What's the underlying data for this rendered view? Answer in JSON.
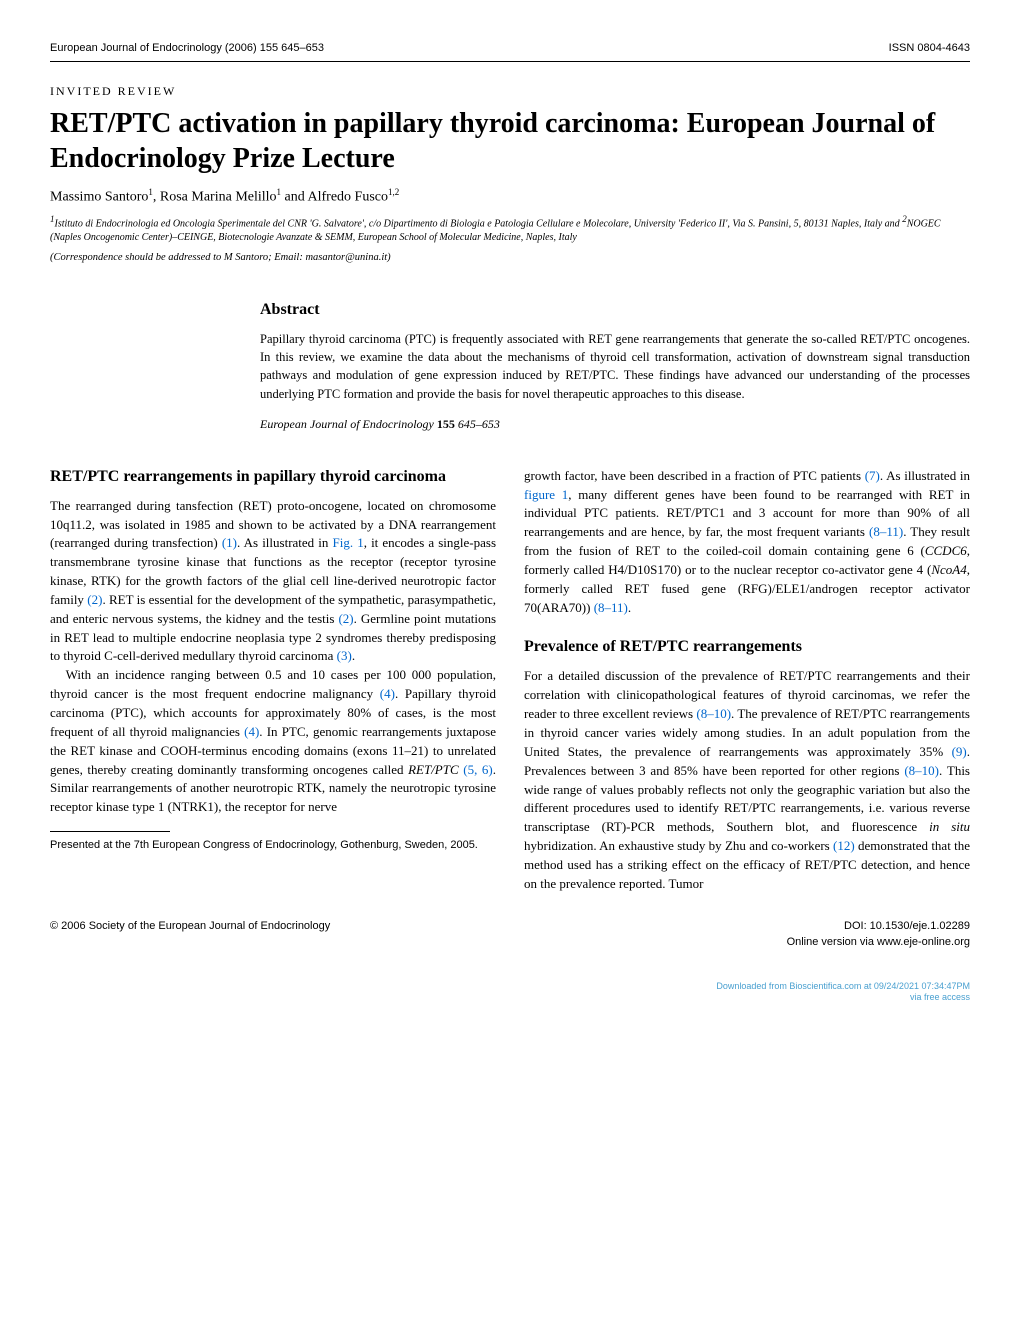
{
  "header": {
    "journal_line": "European Journal of Endocrinology (2006) 155 645–653",
    "issn": "ISSN 0804-4643"
  },
  "article": {
    "review_label": "INVITED REVIEW",
    "title": "RET/PTC activation in papillary thyroid carcinoma: European Journal of Endocrinology Prize Lecture",
    "authors_html": "Massimo Santoro<sup>1</sup>, Rosa Marina Melillo<sup>1</sup> and Alfredo Fusco<sup>1,2</sup>",
    "affiliations_html": "<sup>1</sup>Istituto di Endocrinologia ed Oncologia Sperimentale del CNR 'G. Salvatore', c/o Dipartimento di Biologia e Patologia Cellulare e Molecolare, University 'Federico II', Via S. Pansini, 5, 80131 Naples, Italy and <sup>2</sup>NOGEC (Naples Oncogenomic Center)–CEINGE, Biotecnologie Avanzate & SEMM, European School of Molecular Medicine, Naples, Italy",
    "correspondence": "(Correspondence should be addressed to M Santoro; Email: masantor@unina.it)"
  },
  "abstract": {
    "heading": "Abstract",
    "text": "Papillary thyroid carcinoma (PTC) is frequently associated with RET gene rearrangements that generate the so-called RET/PTC oncogenes. In this review, we examine the data about the mechanisms of thyroid cell transformation, activation of downstream signal transduction pathways and modulation of gene expression induced by RET/PTC. These findings have advanced our understanding of the processes underlying PTC formation and provide the basis for novel therapeutic approaches to this disease.",
    "citation_journal": "European Journal of Endocrinology",
    "citation_vol": "155",
    "citation_pages": "645–653"
  },
  "body": {
    "left": {
      "heading1": "RET/PTC rearrangements in papillary thyroid carcinoma",
      "p1_html": "The rearranged during tansfection (RET) proto-oncogene, located on chromosome 10q11.2, was isolated in 1985 and shown to be activated by a DNA rearrangement (rearranged during transfection) <span class=\"ref-link\">(1)</span>. As illustrated in <span class=\"ref-link\">Fig. 1</span>, it encodes a single-pass transmembrane tyrosine kinase that functions as the receptor (receptor tyrosine kinase, RTK) for the growth factors of the glial cell line-derived neurotropic factor family <span class=\"ref-link\">(2)</span>. RET is essential for the development of the sympathetic, parasympathetic, and enteric nervous systems, the kidney and the testis <span class=\"ref-link\">(2)</span>. Germline point mutations in RET lead to multiple endocrine neoplasia type 2 syndromes thereby predisposing to thyroid C-cell-derived medullary thyroid carcinoma <span class=\"ref-link\">(3)</span>.",
      "p2_html": "With an incidence ranging between 0.5 and 10 cases per 100 000 population, thyroid cancer is the most frequent endocrine malignancy <span class=\"ref-link\">(4)</span>. Papillary thyroid carcinoma (PTC), which accounts for approximately 80% of cases, is the most frequent of all thyroid malignancies <span class=\"ref-link\">(4)</span>. In PTC, genomic rearrangements juxtapose the RET kinase and COOH-terminus encoding domains (exons 11–21) to unrelated genes, thereby creating dominantly transforming oncogenes called <span class=\"italic\">RET/PTC</span> <span class=\"ref-link\">(5, 6)</span>. Similar rearrangements of another neurotropic RTK, namely the neurotropic tyrosine receptor kinase type 1 (NTRK1), the receptor for nerve",
      "presented_note": "Presented at the 7th European Congress of Endocrinology, Gothenburg, Sweden, 2005."
    },
    "right": {
      "p1_html": "growth factor, have been described in a fraction of PTC patients <span class=\"ref-link\">(7)</span>. As illustrated in <span class=\"ref-link\">figure 1</span>, many different genes have been found to be rearranged with RET in individual PTC patients. RET/PTC1 and 3 account for more than 90% of all rearrangements and are hence, by far, the most frequent variants <span class=\"ref-link\">(8–11)</span>. They result from the fusion of RET to the coiled-coil domain containing gene 6 (<span class=\"italic\">CCDC6</span>, formerly called H4/D10S170) or to the nuclear receptor co-activator gene 4 (<span class=\"italic\">NcoA4</span>, formerly called RET fused gene (RFG)/ELE1/androgen receptor activator 70(ARA70)) <span class=\"ref-link\">(8–11)</span>.",
      "heading2": "Prevalence of RET/PTC rearrangements",
      "p2_html": "For a detailed discussion of the prevalence of RET/PTC rearrangements and their correlation with clinicopathological features of thyroid carcinomas, we refer the reader to three excellent reviews <span class=\"ref-link\">(8–10)</span>. The prevalence of RET/PTC rearrangements in thyroid cancer varies widely among studies. In an adult population from the United States, the prevalence of rearrangements was approximately 35% <span class=\"ref-link\">(9)</span>. Prevalences between 3 and 85% have been reported for other regions <span class=\"ref-link\">(8–10)</span>. This wide range of values probably reflects not only the geographic variation but also the different procedures used to identify RET/PTC rearrangements, i.e. various reverse transcriptase (RT)-PCR methods, Southern blot, and fluorescence <span class=\"italic\">in situ</span> hybridization. An exhaustive study by Zhu and co-workers <span class=\"ref-link\">(12)</span> demonstrated that the method used has a striking effect on the efficacy of RET/PTC detection, and hence on the prevalence reported. Tumor"
    }
  },
  "footer": {
    "copyright": "© 2006 Society of the European Journal of Endocrinology",
    "doi": "DOI: 10.1530/eje.1.02289",
    "online": "Online version via www.eje-online.org"
  },
  "download": {
    "line1": "Downloaded from Bioscientifica.com at 09/24/2021 07:34:47PM",
    "line2": "via free access"
  },
  "colors": {
    "text": "#000000",
    "background": "#ffffff",
    "ref_link": "#0066cc",
    "download": "#4aa0d0"
  }
}
